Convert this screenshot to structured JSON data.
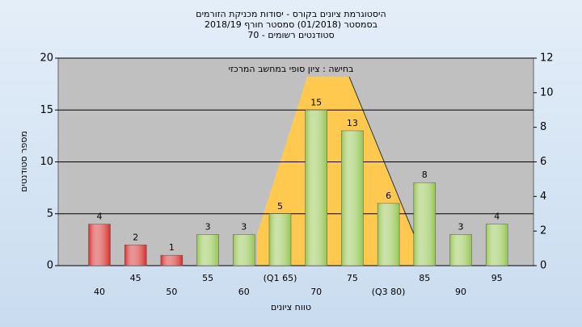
{
  "chart_data": {
    "type": "bar",
    "title": [
      "היסטוגרמת ציונים בקורס - יסודות מכניקת הזורמים",
      "בסמסטר  (01/2018)  סמסטר חורף 2018/19",
      "סטודנטים רשומים - 70"
    ],
    "annotation": "בחישה : ציון סופי במחשב המרכזי",
    "x_label": "טווח ציונים",
    "y_label": "מספר סטודנטים",
    "categories": [
      "40",
      "45",
      "50",
      "55",
      "60",
      "(Q1 65)",
      "70",
      "75",
      "(Q3 80)",
      "85",
      "90",
      "95"
    ],
    "values": [
      4,
      2,
      1,
      3,
      3,
      5,
      15,
      13,
      6,
      8,
      3,
      4
    ],
    "colors": [
      "#d42a2a",
      "#d42a2a",
      "#d42a2a",
      "#94c450",
      "#94c450",
      "#94c450",
      "#94c450",
      "#94c450",
      "#94c450",
      "#94c450",
      "#94c450",
      "#94c450"
    ],
    "ylim": [
      0,
      20
    ],
    "yticks": [
      0,
      5,
      10,
      15,
      20
    ],
    "y2lim": [
      0,
      12
    ],
    "y2ticks": [
      0,
      2,
      4,
      6,
      8,
      10,
      12
    ],
    "grid": true
  }
}
